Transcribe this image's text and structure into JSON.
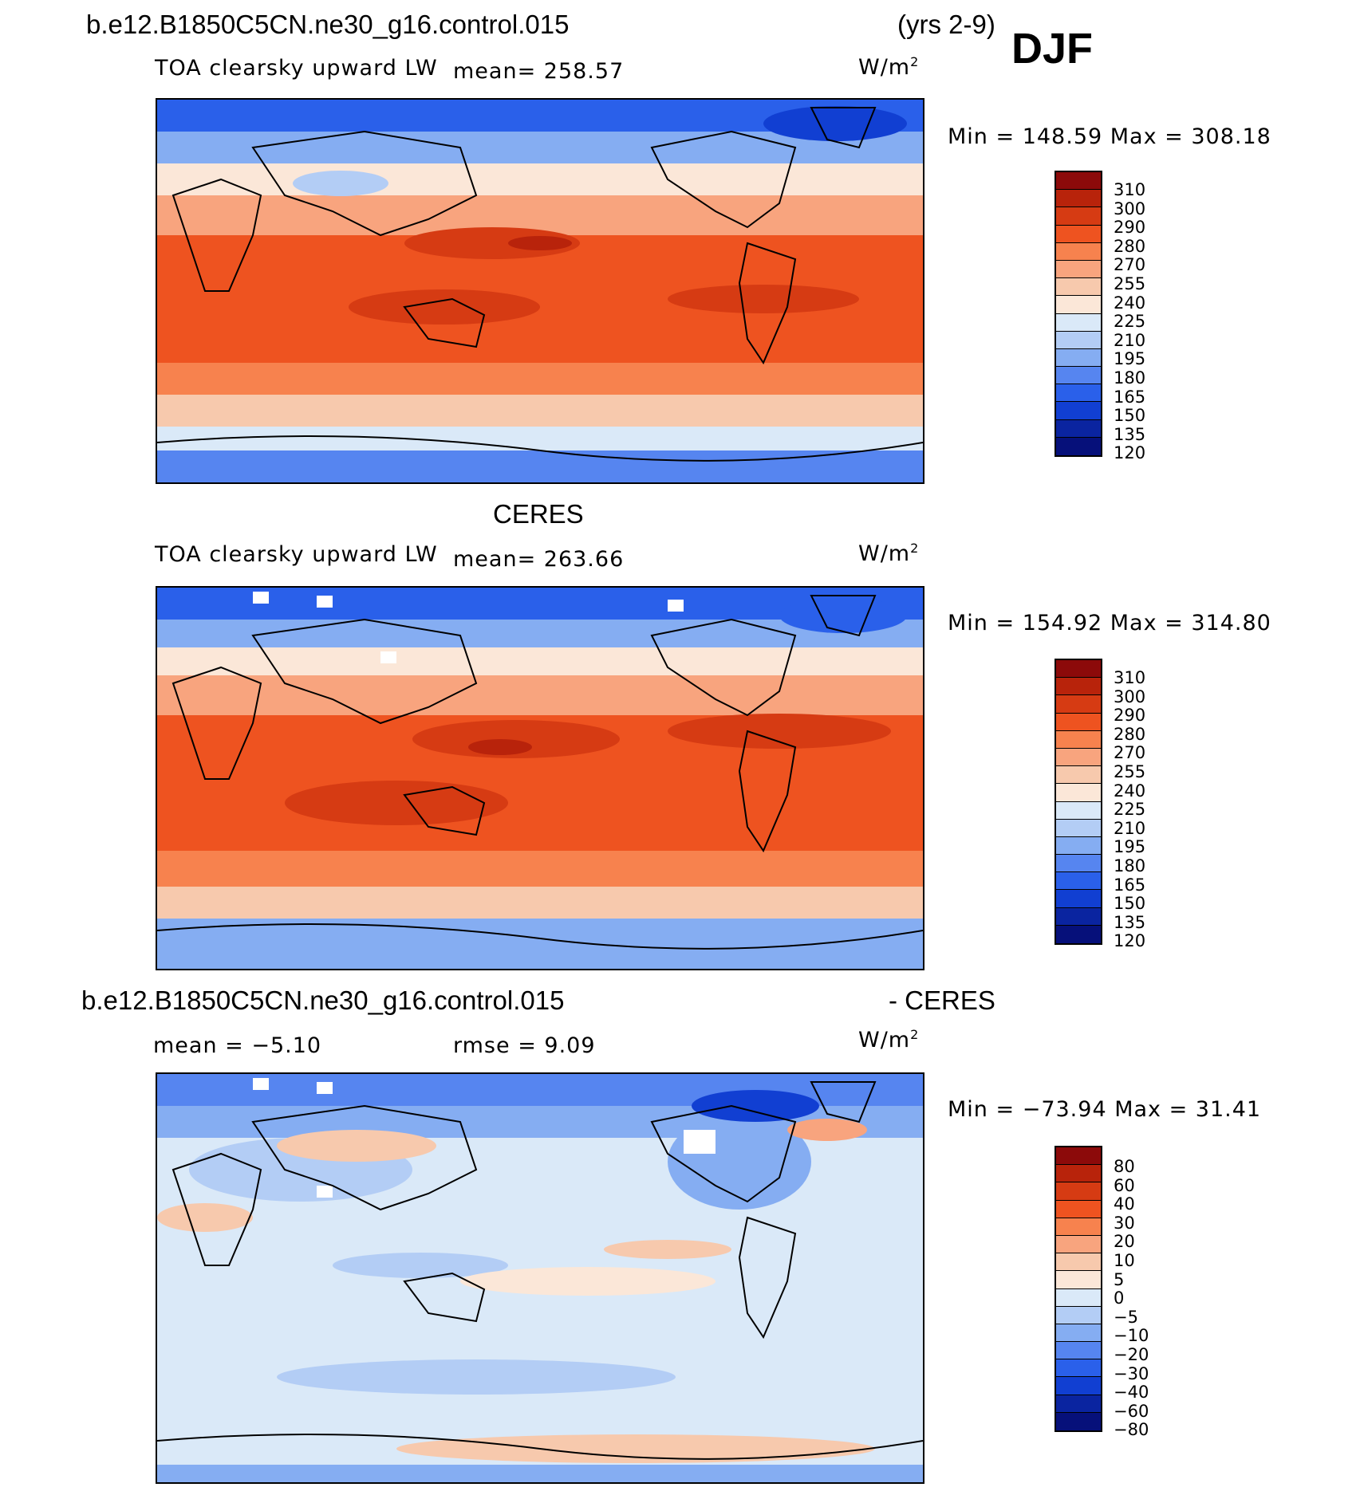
{
  "header": {
    "case": "b.e12.B1850C5CN.ne30_g16.control.015",
    "years": "(yrs 2-9)",
    "season": "DJF"
  },
  "panels": [
    {
      "name": "model",
      "title": "",
      "variable": "TOA clearsky upward LW",
      "stat": "mean= 258.57",
      "units": "W/m",
      "units_exp": "2",
      "range": "Min = 148.59 Max = 308.18",
      "colorbar": {
        "labels": [
          "310",
          "300",
          "290",
          "280",
          "270",
          "255",
          "240",
          "225",
          "210",
          "195",
          "180",
          "165",
          "150",
          "135",
          "120"
        ],
        "colors": [
          "#8c0a0a",
          "#b8230b",
          "#d63b13",
          "#ee5320",
          "#f7824e",
          "#f8a47e",
          "#f7c9ad",
          "#fbe7d8",
          "#dae9f8",
          "#b3cdf5",
          "#85adf2",
          "#5685f0",
          "#2a60ea",
          "#113fd2",
          "#0a24a0",
          "#06107a"
        ]
      }
    },
    {
      "name": "obs",
      "title": "CERES",
      "variable": "TOA clearsky upward LW",
      "stat": "mean= 263.66",
      "units": "W/m",
      "units_exp": "2",
      "range": "Min = 154.92 Max = 314.80",
      "colorbar": {
        "labels": [
          "310",
          "300",
          "290",
          "280",
          "270",
          "255",
          "240",
          "225",
          "210",
          "195",
          "180",
          "165",
          "150",
          "135",
          "120"
        ],
        "colors": [
          "#8c0a0a",
          "#b8230b",
          "#d63b13",
          "#ee5320",
          "#f7824e",
          "#f8a47e",
          "#f7c9ad",
          "#fbe7d8",
          "#dae9f8",
          "#b3cdf5",
          "#85adf2",
          "#5685f0",
          "#2a60ea",
          "#113fd2",
          "#0a24a0",
          "#06107a"
        ]
      }
    },
    {
      "name": "diff",
      "title_left": "b.e12.B1850C5CN.ne30_g16.control.015",
      "title_right": "- CERES",
      "stat_mean": "mean =   −5.10",
      "stat_rmse": "rmse =    9.09",
      "units": "W/m",
      "units_exp": "2",
      "range": "Min = −73.94 Max =   31.41",
      "colorbar": {
        "labels": [
          "80",
          "60",
          "40",
          "30",
          "20",
          "10",
          "5",
          "0",
          "−5",
          "−10",
          "−20",
          "−30",
          "−40",
          "−60",
          "−80"
        ],
        "colors": [
          "#8c0a0a",
          "#b8230b",
          "#d63b13",
          "#ee5320",
          "#f7824e",
          "#f8a47e",
          "#f7c9ad",
          "#fbe7d8",
          "#dae9f8",
          "#b3cdf5",
          "#85adf2",
          "#5685f0",
          "#2a60ea",
          "#113fd2",
          "#0a24a0",
          "#06107a"
        ]
      }
    }
  ]
}
